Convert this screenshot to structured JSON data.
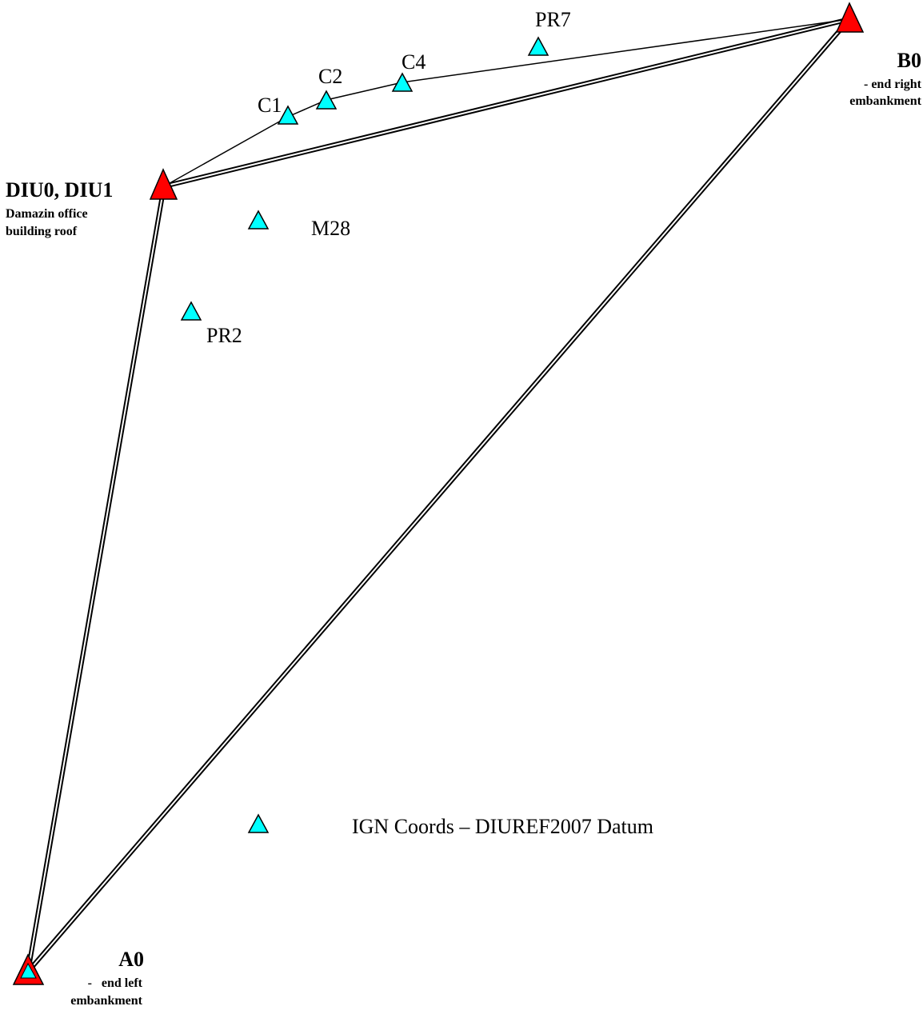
{
  "stations": {
    "diu": {
      "name": "DIU0, DIU1",
      "desc_line1": "Damazin office",
      "desc_line2": "building roof",
      "marker": "red-triangle-icon"
    },
    "b0": {
      "name": "B0",
      "desc_line1": "- end right",
      "desc_line2": "embankment",
      "marker": "red-triangle-icon"
    },
    "a0": {
      "name": "A0",
      "desc_line1": "-   end left",
      "desc_line2": "embankment",
      "marker": "red-outline-triangle-with-cyan-icon"
    }
  },
  "points": {
    "c1": "C1",
    "c2": "C2",
    "c4": "C4",
    "pr7": "PR7",
    "m28": "M28",
    "pr2": "PR2"
  },
  "legend": {
    "label": "IGN Coords – DIUREF2007 Datum",
    "marker": "cyan-triangle-icon"
  },
  "colors": {
    "primary_station": "#ff0000",
    "ign_point": "#00ffff",
    "outline": "#000000",
    "background": "#ffffff"
  }
}
